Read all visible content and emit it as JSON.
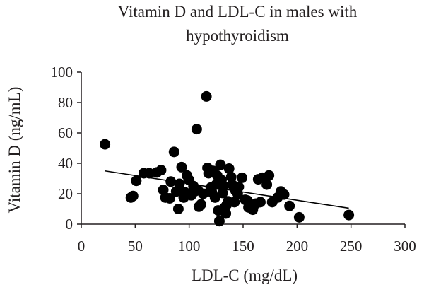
{
  "chart_data": {
    "type": "scatter",
    "title_lines": [
      "Vitamin D and LDL-C in males with",
      "hypothyroidism"
    ],
    "xlabel": "LDL-C (mg/dL)",
    "ylabel": "Vitamin D (ng/mL)",
    "xlim": [
      0,
      300
    ],
    "ylim": [
      0,
      100
    ],
    "xticks": [
      "0",
      "50",
      "100",
      "150",
      "200",
      "250",
      "300"
    ],
    "yticks": [
      "0",
      "20",
      "40",
      "60",
      "80",
      "100"
    ],
    "grid": false,
    "legend": "none",
    "trendline": {
      "x": [
        22,
        248
      ],
      "y": [
        35,
        10.5
      ]
    },
    "points": [
      [
        22,
        52.5
      ],
      [
        46,
        17.5
      ],
      [
        48,
        18.5
      ],
      [
        51,
        28.5
      ],
      [
        58,
        33.5
      ],
      [
        63,
        33.5
      ],
      [
        70,
        34
      ],
      [
        74,
        35.5
      ],
      [
        76,
        22.5
      ],
      [
        78,
        17.5
      ],
      [
        82,
        17
      ],
      [
        83,
        28
      ],
      [
        86,
        47.5
      ],
      [
        88,
        21.5
      ],
      [
        90,
        10
      ],
      [
        91,
        26.5
      ],
      [
        93,
        37.5
      ],
      [
        95,
        17.5
      ],
      [
        96,
        21
      ],
      [
        98,
        32
      ],
      [
        99,
        20
      ],
      [
        100,
        29
      ],
      [
        102,
        19
      ],
      [
        104,
        25
      ],
      [
        105,
        21.5
      ],
      [
        107,
        62.5
      ],
      [
        108,
        22.5
      ],
      [
        109,
        11.5
      ],
      [
        111,
        13
      ],
      [
        113,
        20
      ],
      [
        116,
        84
      ],
      [
        117,
        37
      ],
      [
        118,
        33.5
      ],
      [
        120,
        24
      ],
      [
        121,
        21
      ],
      [
        122,
        35
      ],
      [
        124,
        17.5
      ],
      [
        125,
        26
      ],
      [
        126,
        32
      ],
      [
        127,
        9
      ],
      [
        128,
        2
      ],
      [
        129,
        39
      ],
      [
        130,
        29
      ],
      [
        131,
        20.5
      ],
      [
        132,
        25
      ],
      [
        133,
        11
      ],
      [
        134,
        7
      ],
      [
        135,
        13
      ],
      [
        136,
        15
      ],
      [
        137,
        36.5
      ],
      [
        139,
        31
      ],
      [
        140,
        26
      ],
      [
        142,
        14.5
      ],
      [
        143,
        22
      ],
      [
        145,
        20
      ],
      [
        146,
        24.5
      ],
      [
        149,
        30.5
      ],
      [
        152,
        16
      ],
      [
        154,
        15.5
      ],
      [
        155,
        11
      ],
      [
        159,
        9.5
      ],
      [
        162,
        13.5
      ],
      [
        164,
        29.5
      ],
      [
        166,
        14.5
      ],
      [
        168,
        30.5
      ],
      [
        172,
        26
      ],
      [
        174,
        32
      ],
      [
        177,
        14.5
      ],
      [
        182,
        17.5
      ],
      [
        185,
        21.5
      ],
      [
        188,
        19.5
      ],
      [
        193,
        12
      ],
      [
        202,
        4.5
      ],
      [
        248,
        6
      ]
    ]
  }
}
